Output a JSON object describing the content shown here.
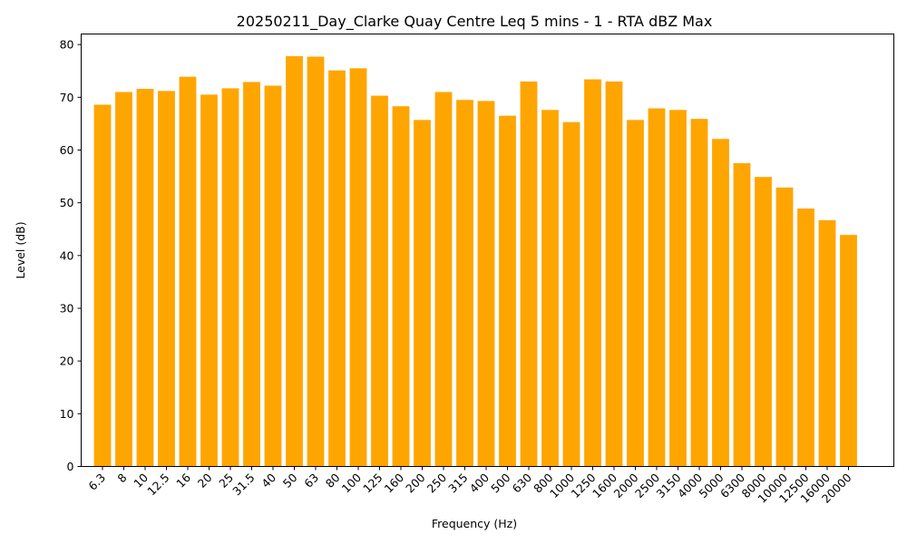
{
  "chart_data": {
    "type": "bar",
    "title": "20250211_Day_Clarke Quay Centre Leq 5 mins - 1 - RTA dBZ Max",
    "xlabel": "Frequency (Hz)",
    "ylabel": "Level (dB)",
    "ylim": [
      0,
      82
    ],
    "yticks": [
      0,
      10,
      20,
      30,
      40,
      50,
      60,
      70,
      80
    ],
    "categories": [
      "6.3",
      "8",
      "10",
      "12.5",
      "16",
      "20",
      "25",
      "31.5",
      "40",
      "50",
      "63",
      "80",
      "100",
      "125",
      "160",
      "200",
      "250",
      "315",
      "400",
      "500",
      "630",
      "800",
      "1000",
      "1250",
      "1600",
      "2000",
      "2500",
      "3150",
      "4000",
      "5000",
      "6300",
      "8000",
      "10000",
      "12500",
      "16000",
      "20000"
    ],
    "values": [
      68.6,
      71.0,
      71.6,
      71.2,
      73.9,
      70.5,
      71.7,
      72.9,
      72.2,
      77.8,
      77.7,
      75.1,
      75.5,
      70.3,
      68.3,
      65.7,
      71.0,
      69.5,
      69.3,
      66.5,
      73.0,
      67.6,
      65.3,
      73.4,
      73.0,
      65.7,
      67.9,
      67.6,
      65.9,
      62.1,
      57.5,
      54.9,
      52.9,
      48.9,
      46.7,
      43.9
    ],
    "grid": false,
    "bar_color": "#ffa500"
  }
}
